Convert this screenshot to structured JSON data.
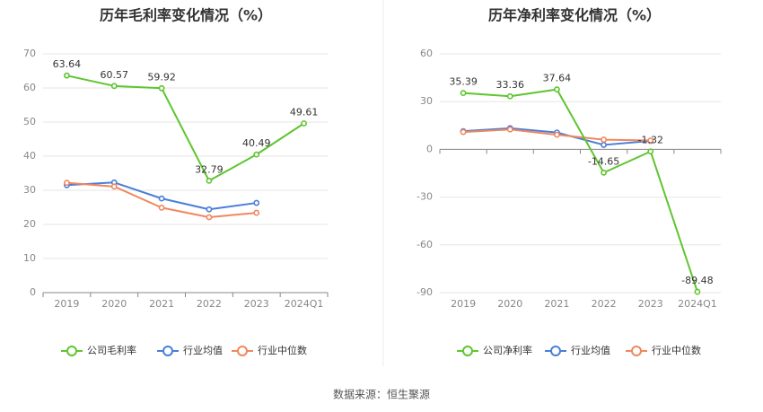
{
  "source_text": "数据来源：恒生聚源",
  "colors": {
    "company": "#5ec52f",
    "avg": "#4a7ed9",
    "median": "#f0875e",
    "grid": "#e6e6e6",
    "axis": "#888888"
  },
  "chart_data": [
    {
      "type": "line",
      "title": "历年毛利率变化情况（%）",
      "xlabel": "",
      "ylabel": "",
      "categories": [
        "2019",
        "2020",
        "2021",
        "2022",
        "2023",
        "2024Q1"
      ],
      "ylim": [
        0,
        70
      ],
      "yticks": [
        0,
        10,
        20,
        30,
        40,
        50,
        60,
        70
      ],
      "grid": true,
      "legend_position": "bottom",
      "series": [
        {
          "name": "公司毛利率",
          "color": "#5ec52f",
          "values": [
            63.64,
            60.57,
            59.92,
            32.79,
            40.49,
            49.61
          ],
          "labels": [
            "63.64",
            "60.57",
            "59.92",
            "32.79",
            "40.49",
            "49.61"
          ]
        },
        {
          "name": "行业均值",
          "color": "#4a7ed9",
          "values": [
            31.5,
            32.3,
            27.6,
            24.4,
            26.3,
            null
          ]
        },
        {
          "name": "行业中位数",
          "color": "#f0875e",
          "values": [
            32.2,
            31.1,
            24.9,
            22.1,
            23.4,
            null
          ]
        }
      ]
    },
    {
      "type": "line",
      "title": "历年净利率变化情况（%）",
      "xlabel": "",
      "ylabel": "",
      "categories": [
        "2019",
        "2020",
        "2021",
        "2022",
        "2023",
        "2024Q1"
      ],
      "ylim": [
        -90,
        60
      ],
      "yticks": [
        -90,
        -60,
        -30,
        0,
        30,
        60
      ],
      "grid": true,
      "legend_position": "bottom",
      "series": [
        {
          "name": "公司净利率",
          "color": "#5ec52f",
          "values": [
            35.39,
            33.36,
            37.64,
            -14.65,
            -1.32,
            -89.48
          ],
          "labels": [
            "35.39",
            "33.36",
            "37.64",
            "-14.65",
            "-1.32",
            "-89.48"
          ]
        },
        {
          "name": "行业均值",
          "color": "#4a7ed9",
          "values": [
            11.4,
            13.3,
            10.6,
            2.8,
            5.3,
            null
          ]
        },
        {
          "name": "行业中位数",
          "color": "#f0875e",
          "values": [
            10.9,
            12.5,
            9.2,
            6.1,
            5.6,
            null
          ]
        }
      ]
    }
  ]
}
